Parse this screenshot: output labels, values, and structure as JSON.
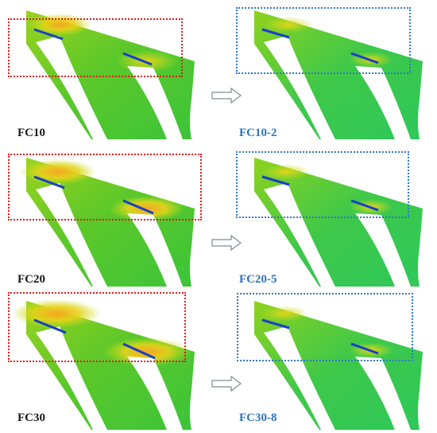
{
  "colors": {
    "baseline_box": "#e8191d",
    "modified_box": "#2e7bc4",
    "baseline_label": "#1a1a1a",
    "modified_label": "#2f74b8",
    "arrow": "#7f8c99"
  },
  "rows": [
    {
      "baseline_label": "FC10",
      "modified_label": "FC10-2"
    },
    {
      "baseline_label": "FC20",
      "modified_label": "FC20-5"
    },
    {
      "baseline_label": "FC30",
      "modified_label": "FC30-8"
    }
  ]
}
